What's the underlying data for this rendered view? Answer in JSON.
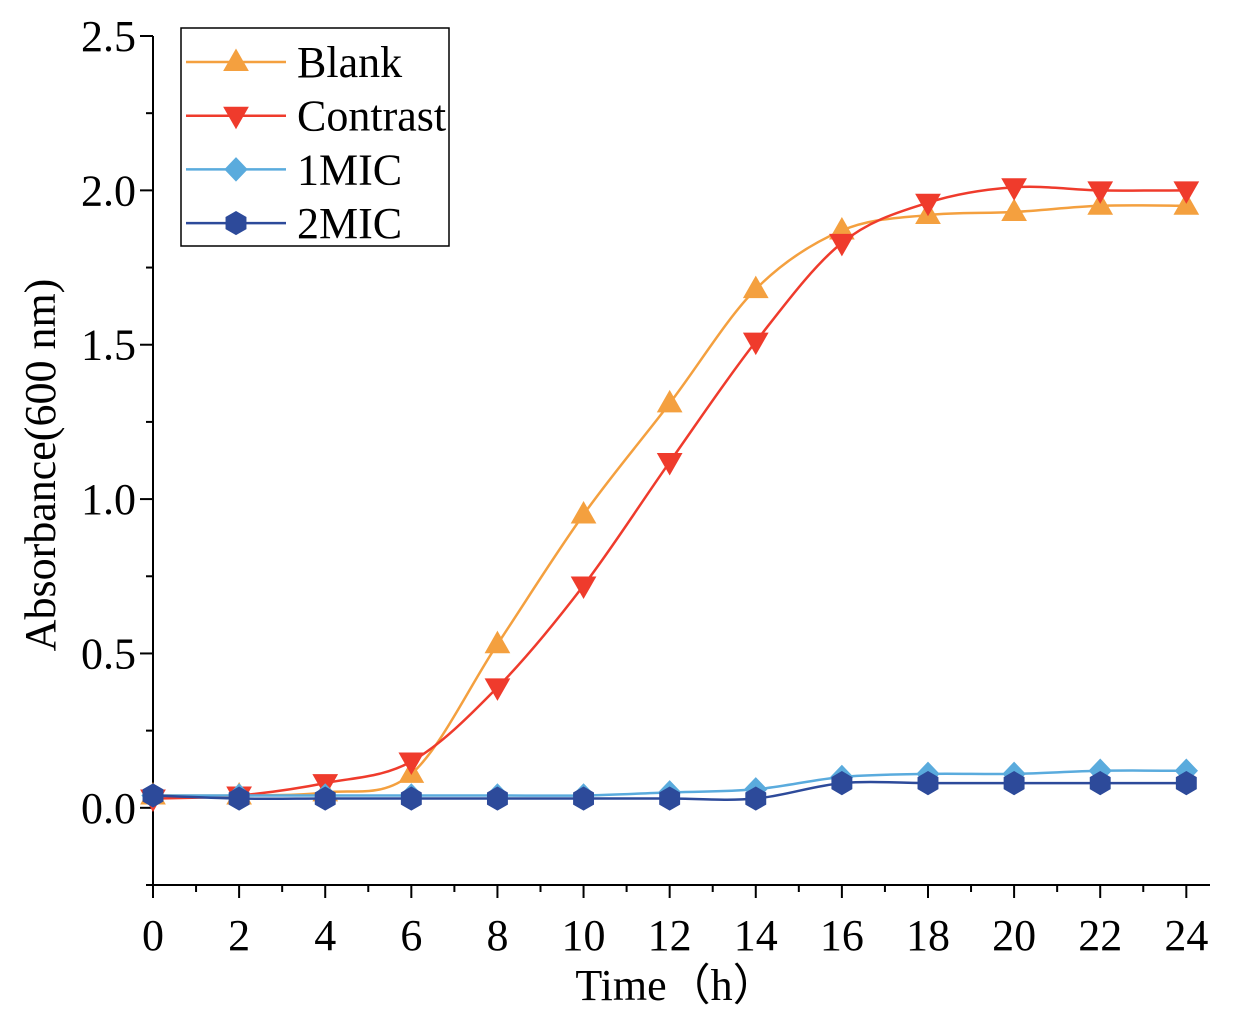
{
  "chart_data": {
    "type": "line",
    "xlabel": "Time（h）",
    "ylabel": "Absorbance(600 nm)",
    "xlim": [
      0,
      24.55
    ],
    "ylim": [
      -0.25,
      2.5
    ],
    "xticks": [
      0,
      2,
      4,
      6,
      8,
      10,
      12,
      14,
      16,
      18,
      20,
      22,
      24
    ],
    "xtick_labels": [
      "0",
      "2",
      "4",
      "6",
      "8",
      "10",
      "12",
      "14",
      "16",
      "18",
      "20",
      "22",
      "24"
    ],
    "xminor_step": 1,
    "yticks": [
      0,
      0.5,
      1,
      1.5,
      2,
      2.5
    ],
    "ytick_labels": [
      "0.0",
      "0.5",
      "1.0",
      "1.5",
      "2.0",
      "2.5"
    ],
    "yminor_step": 0.25,
    "grid": false,
    "legend": "top-left",
    "x": [
      0,
      2,
      4,
      6,
      8,
      10,
      12,
      14,
      16,
      18,
      20,
      22,
      24
    ],
    "series": [
      {
        "name": "Blank",
        "marker": "triangle-up",
        "color": "#F4A03F",
        "values": [
          0.04,
          0.04,
          0.05,
          0.11,
          0.53,
          0.95,
          1.31,
          1.68,
          1.87,
          1.92,
          1.93,
          1.95,
          1.95
        ]
      },
      {
        "name": "Contrast",
        "marker": "triangle-down",
        "color": "#EF3B2C",
        "values": [
          0.03,
          0.04,
          0.08,
          0.15,
          0.39,
          0.72,
          1.12,
          1.51,
          1.83,
          1.96,
          2.01,
          2.0,
          2.0
        ]
      },
      {
        "name": "1MIC",
        "marker": "diamond",
        "color": "#5AABDD",
        "values": [
          0.04,
          0.04,
          0.04,
          0.04,
          0.04,
          0.04,
          0.05,
          0.06,
          0.1,
          0.11,
          0.11,
          0.12,
          0.12
        ]
      },
      {
        "name": "2MIC",
        "marker": "hexagon",
        "color": "#2D4A9A",
        "values": [
          0.04,
          0.03,
          0.03,
          0.03,
          0.03,
          0.03,
          0.03,
          0.03,
          0.08,
          0.08,
          0.08,
          0.08,
          0.08
        ]
      }
    ]
  }
}
